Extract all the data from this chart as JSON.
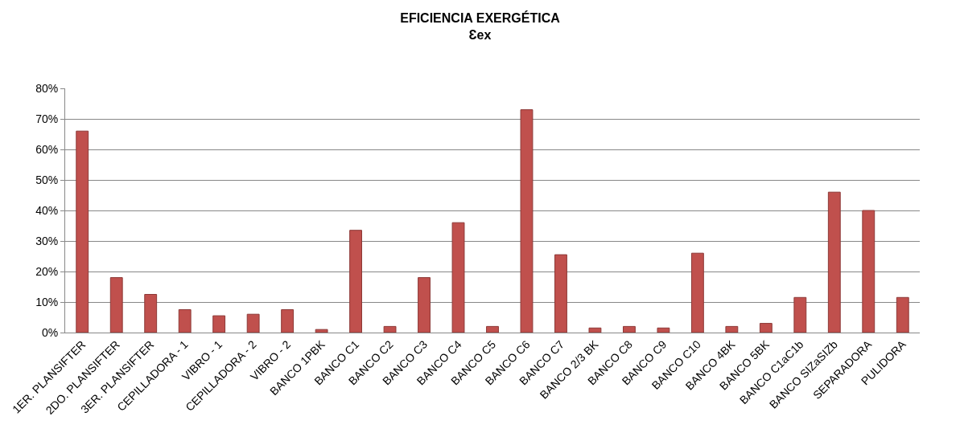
{
  "chart_data": {
    "type": "bar",
    "title": "EFICIENCIA EXERGÉTICA",
    "subtitle": "Ɛex",
    "categories": [
      "1ER. PLANSIFTER",
      "2DO. PLANSIFTER",
      "3ER. PLANSIFTER",
      "CEPILLADORA - 1",
      "VIBRO - 1",
      "CEPILLADORA - 2",
      "VIBRO - 2",
      "BANCO 1PBK",
      "BANCO C1",
      "BANCO C2",
      "BANCO C3",
      "BANCO C4",
      "BANCO C5",
      "BANCO C6",
      "BANCO C7",
      "BANCO 2/3 BK",
      "BANCO C8",
      "BANCO C9",
      "BANCO C10",
      "BANCO 4BK",
      "BANCO 5BK",
      "BANCO C1aC1b",
      "BANCO SIZaSIZb",
      "SEPARADORA",
      "PULIDORA"
    ],
    "values": [
      66,
      18,
      12.5,
      7.5,
      5.5,
      6,
      7.5,
      1,
      33.5,
      2,
      18,
      36,
      2,
      73,
      25.5,
      1.5,
      2,
      1.5,
      26,
      2,
      3,
      11.5,
      46,
      40,
      11.5
    ],
    "color": "#c0504d",
    "ylim": [
      0,
      80
    ],
    "yticks": [
      {
        "value": 0,
        "label": "0%"
      },
      {
        "value": 10,
        "label": "10%"
      },
      {
        "value": 20,
        "label": "20%"
      },
      {
        "value": 30,
        "label": "30%"
      },
      {
        "value": 40,
        "label": "40%"
      },
      {
        "value": 50,
        "label": "50%"
      },
      {
        "value": 60,
        "label": "60%"
      },
      {
        "value": 70,
        "label": "70%"
      },
      {
        "value": 80,
        "label": "80%"
      }
    ],
    "grid": "y"
  }
}
